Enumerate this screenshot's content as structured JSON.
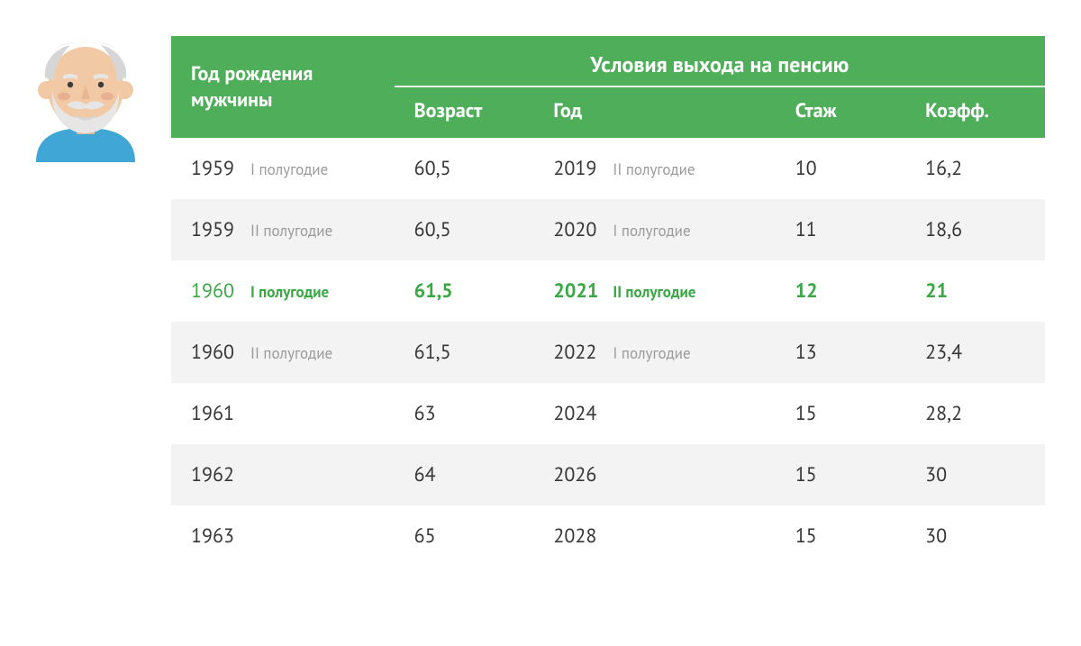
{
  "colors": {
    "header_bg": "#4fae5a",
    "header_text": "#ffffff",
    "row_alt_bg": "#f3f3f3",
    "text": "#363636",
    "muted": "#9a9a9a",
    "highlight": "#39a845"
  },
  "icon": {
    "name": "old-man-icon",
    "skin": "#f1c9a5",
    "skin_shadow": "#e5b891",
    "hair": "#e6e6e6",
    "hair_dark": "#d6d6d6",
    "shirt": "#3fa6d6",
    "cheek": "#dd9b82"
  },
  "header": {
    "birth_year": "Год рождения мужчины",
    "group": "Условия выхода на пенсию",
    "age": "Возраст",
    "year": "Год",
    "stage": "Стаж",
    "coef": "Коэфф."
  },
  "rows": [
    {
      "birth_year": "1959",
      "birth_half": "I полугодие",
      "age": "60,5",
      "ret_year": "2019",
      "ret_half": "II полугодие",
      "stage": "10",
      "coef": "16,2",
      "alt": false,
      "highlight": false
    },
    {
      "birth_year": "1959",
      "birth_half": "II полугодие",
      "age": "60,5",
      "ret_year": "2020",
      "ret_half": "I полугодие",
      "stage": "11",
      "coef": "18,6",
      "alt": true,
      "highlight": false
    },
    {
      "birth_year": "1960",
      "birth_half": "I полугодие",
      "age": "61,5",
      "ret_year": "2021",
      "ret_half": "II полугодие",
      "stage": "12",
      "coef": "21",
      "alt": false,
      "highlight": true
    },
    {
      "birth_year": "1960",
      "birth_half": "II полугодие",
      "age": "61,5",
      "ret_year": "2022",
      "ret_half": "I полугодие",
      "stage": "13",
      "coef": "23,4",
      "alt": true,
      "highlight": false
    },
    {
      "birth_year": "1961",
      "birth_half": "",
      "age": "63",
      "ret_year": "2024",
      "ret_half": "",
      "stage": "15",
      "coef": "28,2",
      "alt": false,
      "highlight": false
    },
    {
      "birth_year": "1962",
      "birth_half": "",
      "age": "64",
      "ret_year": "2026",
      "ret_half": "",
      "stage": "15",
      "coef": "30",
      "alt": true,
      "highlight": false
    },
    {
      "birth_year": "1963",
      "birth_half": "",
      "age": "65",
      "ret_year": "2028",
      "ret_half": "",
      "stage": "15",
      "coef": "30",
      "alt": false,
      "highlight": false
    }
  ]
}
